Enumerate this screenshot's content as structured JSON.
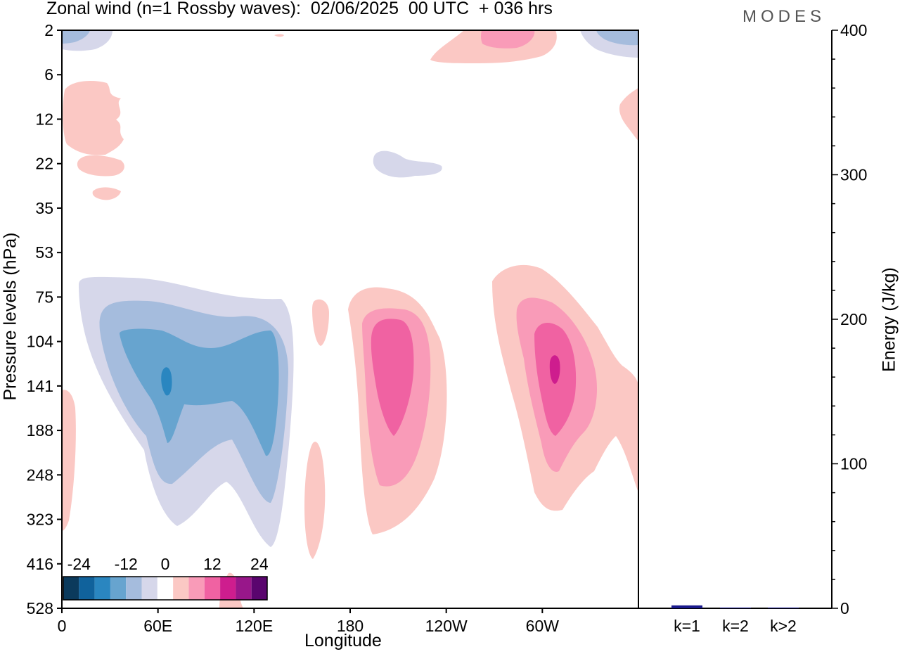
{
  "chart_data": [
    {
      "type": "heatmap",
      "title": "Zonal wind (n=1 Rossby waves):  02/06/2025  00 UTC  + 036 hrs",
      "xlabel": "Longitude",
      "ylabel": "Pressure levels (hPa)",
      "x_ticks": [
        "0",
        "60E",
        "120E",
        "180",
        "120W",
        "60W"
      ],
      "y_ticks": [
        "2",
        "6",
        "12",
        "22",
        "35",
        "53",
        "75",
        "104",
        "141",
        "188",
        "248",
        "323",
        "416",
        "528"
      ],
      "colorbar_labels": [
        "-24",
        "-12",
        "0",
        "12",
        "24"
      ],
      "contour_levels": [
        -28,
        -24,
        -20,
        -16,
        -12,
        -8,
        -4,
        4,
        8,
        12,
        16,
        20,
        24,
        28
      ],
      "fill_colors": [
        "#0b3a5c",
        "#10629c",
        "#2a86c0",
        "#67a4cf",
        "#a5bcdd",
        "#d6d7ea",
        "#ffffff",
        "#fbc8c4",
        "#f99bb8",
        "#f062a2",
        "#ce1d8e",
        "#98178a",
        "#5a056e"
      ],
      "features": [
        {
          "sign": "negative",
          "center_lon_deg": 65,
          "center_hPa": 141,
          "peak_ms": -18
        },
        {
          "sign": "positive",
          "center_lon_deg": 204,
          "center_hPa": 141,
          "peak_ms": 16
        },
        {
          "sign": "positive",
          "center_lon_deg": 307,
          "center_hPa": 141,
          "peak_ms": 20
        },
        {
          "sign": "positive",
          "center_lon_deg": 258,
          "center_hPa": 2,
          "peak_ms": 8
        },
        {
          "sign": "negative",
          "center_lon_deg": 355,
          "center_hPa": 2,
          "peak_ms": -8
        }
      ]
    },
    {
      "type": "bar",
      "ylabel": "Energy (J/kg)",
      "categories": [
        "k=1",
        "k=2",
        "k>2"
      ],
      "values": [
        2,
        0.5,
        0.5
      ],
      "ylim": [
        0,
        400
      ],
      "y_ticks": [
        "0",
        "100",
        "200",
        "300",
        "400"
      ],
      "bar_color": "#1a1a8c"
    }
  ],
  "brand": "MODES"
}
